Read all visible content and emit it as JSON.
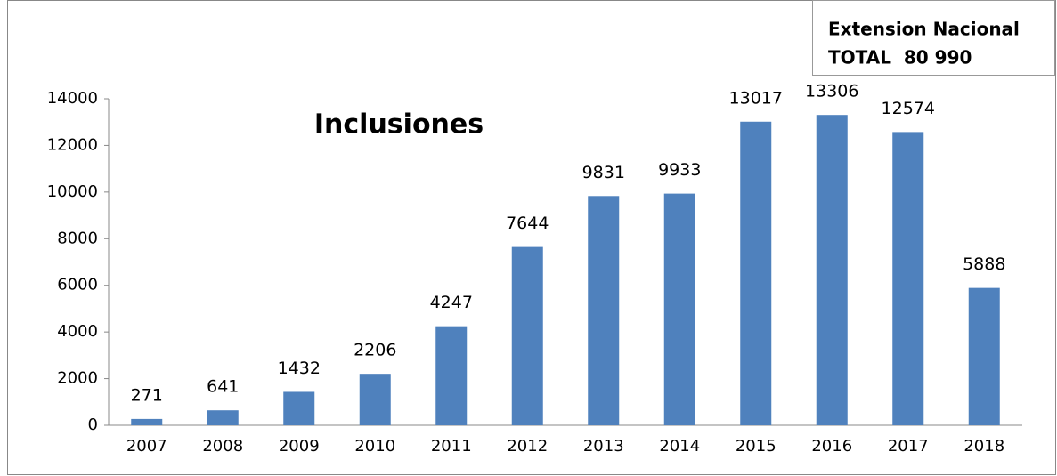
{
  "chart_data": {
    "type": "bar",
    "title": "Inclusiones",
    "annotation": [
      "Extension Nacional",
      "TOTAL  80 990"
    ],
    "categories": [
      "2007",
      "2008",
      "2009",
      "2010",
      "2011",
      "2012",
      "2013",
      "2014",
      "2015",
      "2016",
      "2017",
      "2018"
    ],
    "values": [
      271,
      641,
      1432,
      2206,
      4247,
      7644,
      9831,
      9933,
      13017,
      13306,
      12574,
      5888
    ],
    "color": "#4f81bd",
    "ylim": [
      0,
      14000
    ],
    "yticks": [
      0,
      2000,
      4000,
      6000,
      8000,
      10000,
      12000,
      14000
    ],
    "grid": false
  }
}
